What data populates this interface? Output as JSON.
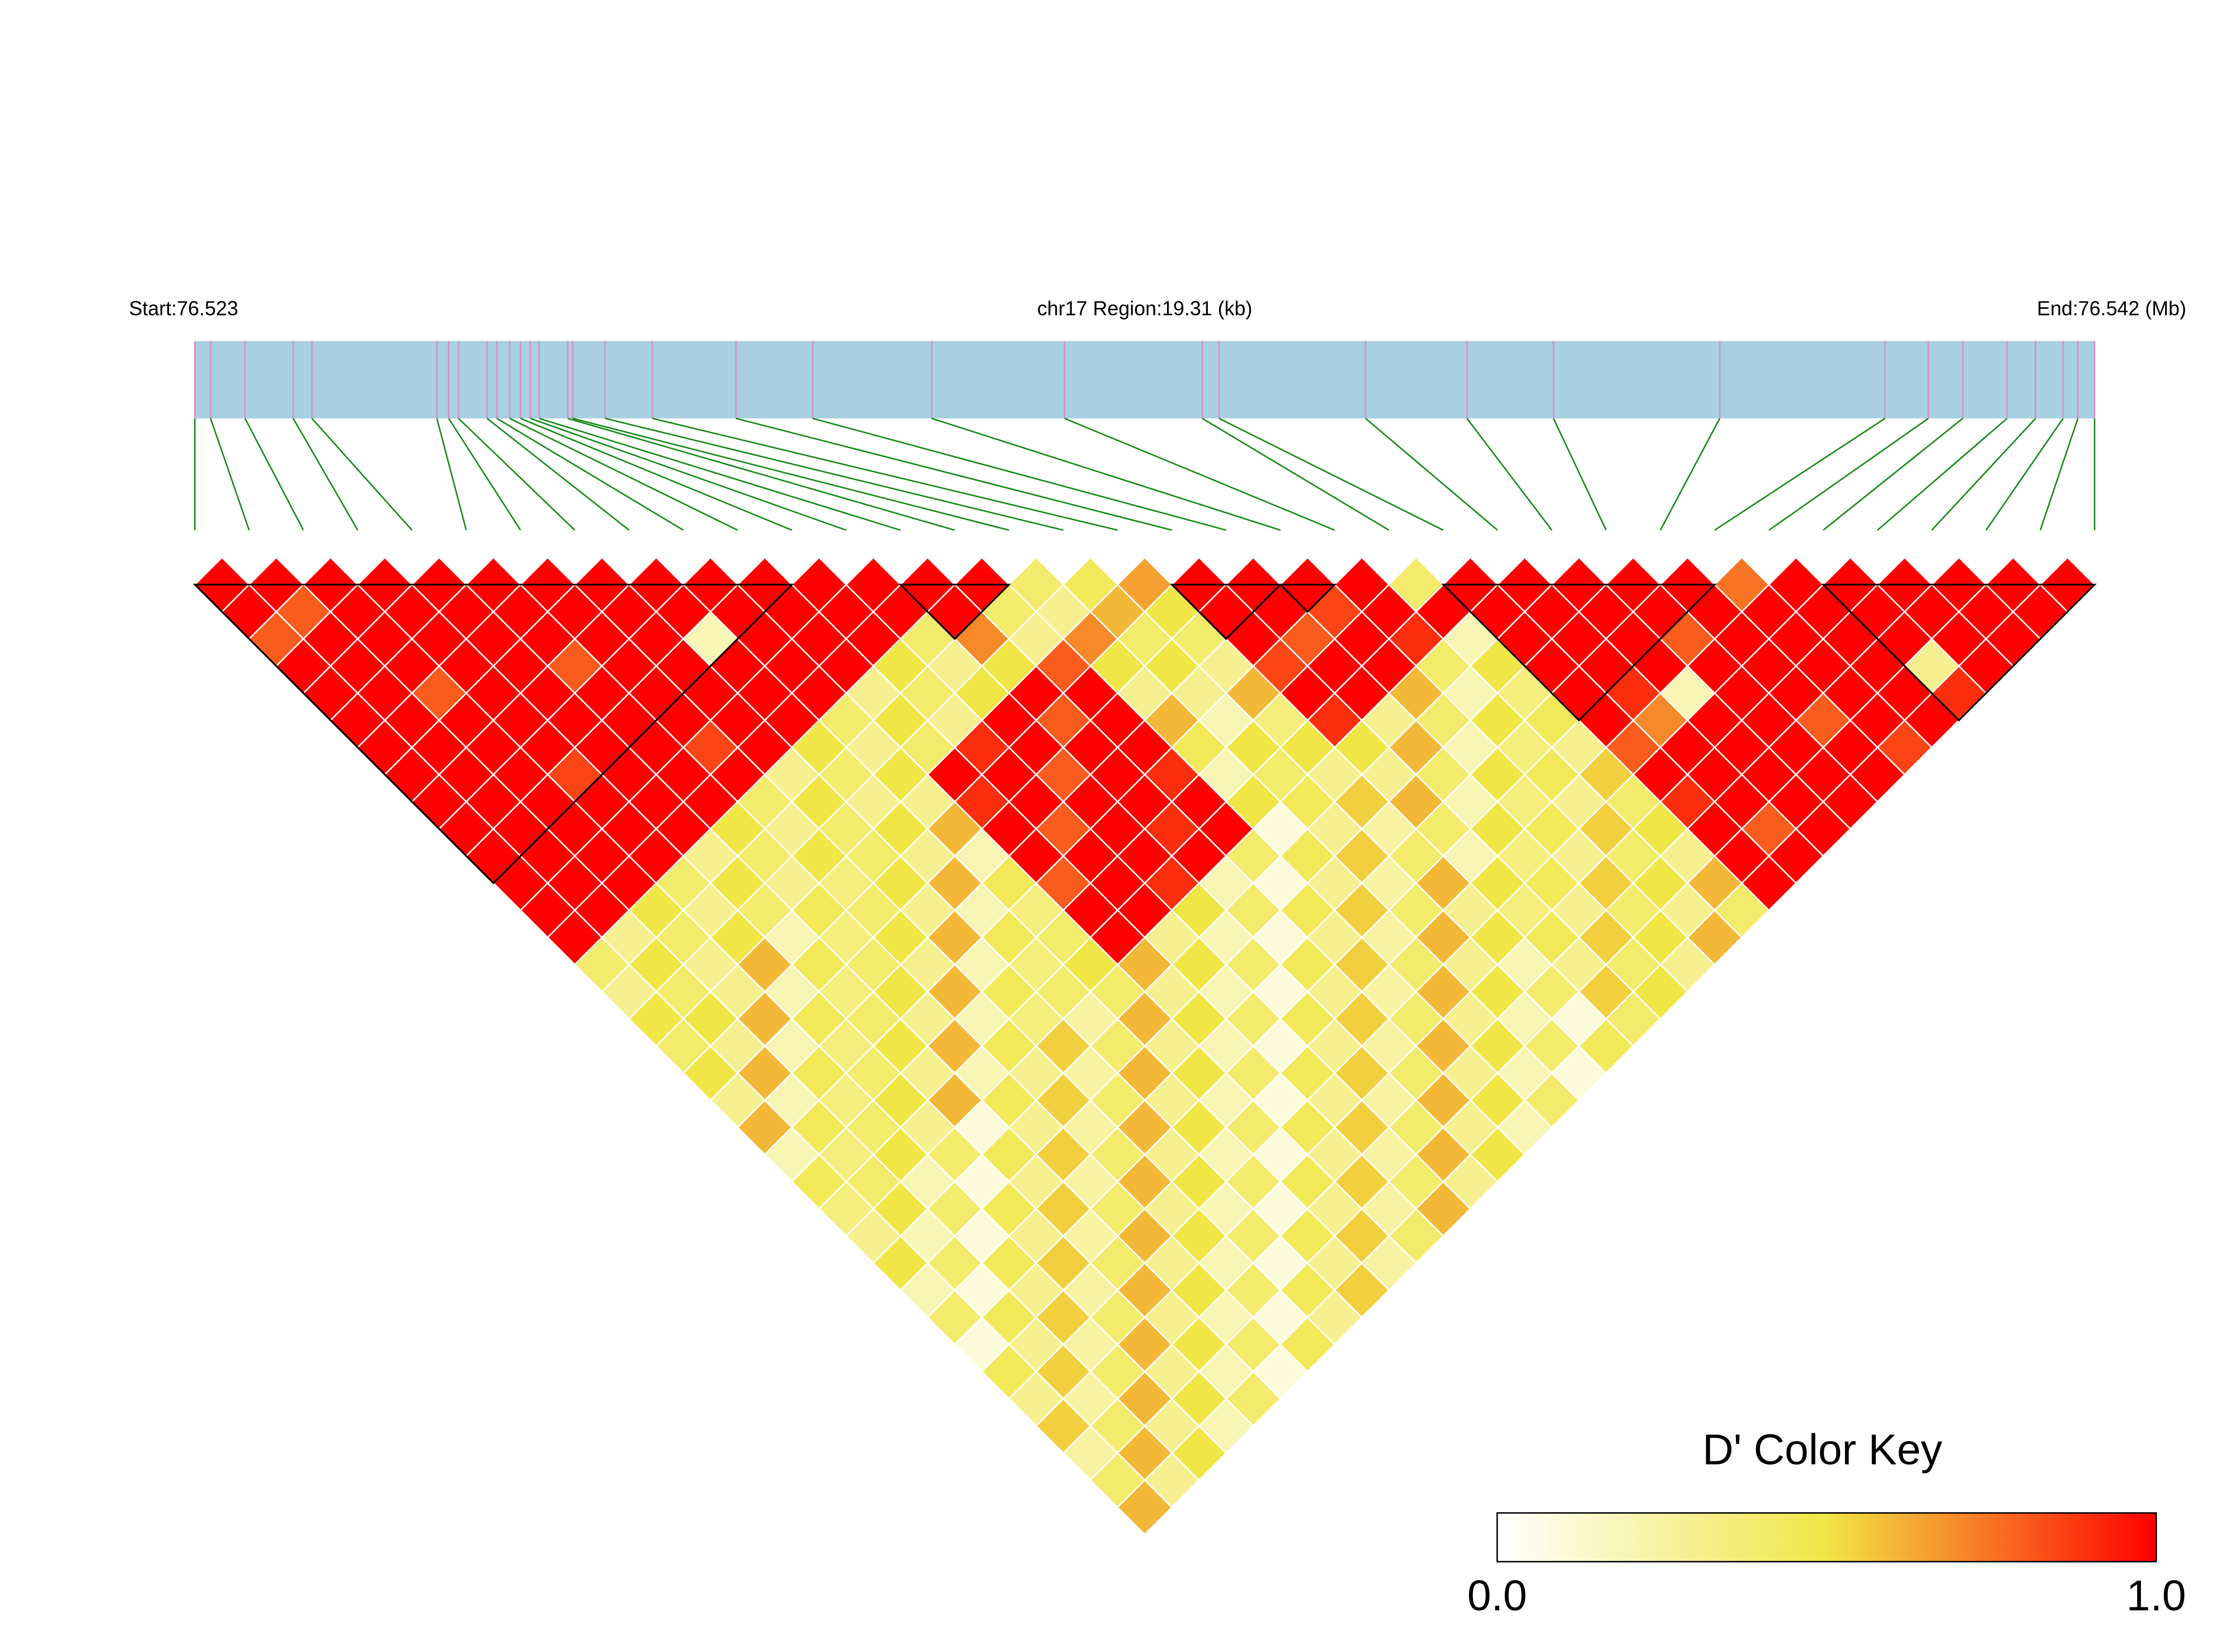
{
  "chart_data": {
    "type": "ld-heatmap",
    "start_label": "Start:76.523",
    "region_label": "chr17 Region:19.31 (kb)",
    "end_label": "End:76.542 (Mb)",
    "key_title": "D' Color Key",
    "key_ticks": [
      {
        "value": 0,
        "label": "0.0"
      },
      {
        "value": 1,
        "label": "1.0"
      }
    ],
    "xlim": [
      0,
      19.31
    ],
    "snp_positions": [
      0,
      0.16,
      0.51,
      1.0,
      1.19,
      2.46,
      2.58,
      2.68,
      2.97,
      3.07,
      3.2,
      3.31,
      3.41,
      3.5,
      3.79,
      3.84,
      4.17,
      4.65,
      5.5,
      6.28,
      7.49,
      8.84,
      10.24,
      10.41,
      11.9,
      12.93,
      13.81,
      15.5,
      17.18,
      17.62,
      17.97,
      18.42,
      18.71,
      18.99,
      19.14,
      19.31
    ],
    "blocks": [
      [
        0,
        11
      ],
      [
        13,
        15
      ],
      [
        18,
        20
      ],
      [
        20,
        21
      ],
      [
        23,
        28
      ],
      [
        30,
        35
      ]
    ],
    "ld": [
      [
        1,
        1,
        0.8,
        1,
        1,
        1,
        1,
        1,
        1,
        1,
        1,
        1,
        1,
        1,
        0.4,
        0.3,
        0.5,
        0.4,
        0.5,
        0.3,
        0.6,
        0.2,
        0.45,
        0.35,
        0.3,
        0.5,
        0.2,
        0.4,
        0.1,
        0.45,
        0.3,
        0.55,
        0.25,
        0.4,
        0.6
      ],
      [
        1,
        0.8,
        1,
        1,
        1,
        1,
        1,
        1,
        1,
        1,
        1,
        1,
        1,
        0.3,
        0.5,
        0.4,
        0.5,
        0.3,
        0.6,
        0.2,
        0.45,
        0.35,
        0.4,
        0.5,
        0.2,
        0.4,
        0.1,
        0.45,
        0.3,
        0.55,
        0.25,
        0.4,
        0.6,
        0.3
      ],
      [
        1,
        1,
        1,
        1,
        0.8,
        1,
        1,
        1,
        1,
        1,
        1,
        1,
        0.5,
        0.4,
        0.3,
        0.3,
        0.6,
        0.2,
        0.45,
        0.35,
        0.4,
        0.5,
        0.2,
        0.4,
        0.1,
        0.45,
        0.3,
        0.55,
        0.25,
        0.4,
        0.6,
        0.3,
        0.5
      ],
      [
        1,
        1,
        1,
        1,
        1,
        1,
        1,
        0.85,
        1,
        1,
        1,
        0.4,
        0.3,
        0.5,
        0.6,
        0.2,
        0.45,
        0.35,
        0.4,
        0.5,
        0.3,
        0.4,
        0.1,
        0.45,
        0.3,
        0.55,
        0.25,
        0.4,
        0.6,
        0.3,
        0.5,
        0.2
      ],
      [
        1,
        1,
        1,
        1,
        1,
        1,
        1,
        1,
        1,
        1,
        0.3,
        0.5,
        0.4,
        0.2,
        0.45,
        0.35,
        0.4,
        0.5,
        0.3,
        0.6,
        0.1,
        0.45,
        0.3,
        0.55,
        0.25,
        0.4,
        0.6,
        0.3,
        0.5,
        0.2,
        0.4
      ],
      [
        1,
        1,
        1,
        0.8,
        1,
        1,
        1,
        1,
        1,
        0.5,
        0.4,
        0.3,
        0.45,
        0.35,
        0.4,
        0.5,
        0.3,
        0.6,
        0.2,
        0.45,
        0.3,
        0.55,
        0.25,
        0.4,
        0.6,
        0.3,
        0.5,
        0.2,
        0.4,
        0.1
      ],
      [
        1,
        1,
        1,
        1,
        1,
        1,
        0.85,
        1,
        0.4,
        0.3,
        0.5,
        0.35,
        0.4,
        0.5,
        0.3,
        0.6,
        0.2,
        0.45,
        0.3,
        0.55,
        0.25,
        0.4,
        0.6,
        0.3,
        0.5,
        0.2,
        0.4,
        0.1,
        0.45
      ],
      [
        1,
        1,
        1,
        1,
        1,
        1,
        1,
        0.3,
        0.5,
        0.4,
        0.4,
        0.5,
        0.3,
        0.6,
        0.2,
        0.45,
        0.35,
        0.55,
        0.25,
        0.4,
        0.6,
        0.3,
        0.5,
        0.2,
        0.4,
        0.1,
        0.45,
        0.3
      ],
      [
        1,
        1,
        0.2,
        1,
        1,
        1,
        0.5,
        0.4,
        0.3,
        0.5,
        0.3,
        0.6,
        0.2,
        0.45,
        0.35,
        0.4,
        0.25,
        0.4,
        0.6,
        0.3,
        0.5,
        0.2,
        0.4,
        0.1,
        0.45,
        0.3,
        0.55
      ],
      [
        1,
        1,
        1,
        1,
        1,
        0.4,
        0.3,
        0.5,
        0.3,
        0.6,
        0.2,
        0.45,
        0.35,
        0.4,
        0.5,
        0.4,
        0.6,
        0.3,
        0.5,
        0.2,
        0.4,
        0.1,
        0.45,
        0.3,
        0.55,
        0.25
      ],
      [
        1,
        1,
        1,
        1,
        0.3,
        0.5,
        0.4,
        1,
        0.9,
        1,
        1,
        0.8,
        1,
        1,
        0.6,
        0.3,
        0.5,
        0.2,
        0.4,
        0.1,
        0.45,
        0.3,
        0.55,
        0.25,
        0.4
      ],
      [
        1,
        1,
        1,
        0.5,
        0.4,
        0.3,
        0.9,
        1,
        1,
        0.8,
        1,
        1,
        1,
        0.3,
        0.5,
        0.2,
        0.4,
        0.1,
        0.45,
        0.3,
        0.55,
        0.25,
        0.4,
        0.6
      ],
      [
        1,
        1,
        0.4,
        0.3,
        0.5,
        1,
        1,
        0.8,
        1,
        1,
        1,
        0.9,
        0.5,
        0.2,
        0.4,
        0.1,
        0.45,
        0.3,
        0.55,
        0.25,
        0.4,
        0.6,
        0.3
      ],
      [
        1,
        1,
        0.7,
        0.5,
        1,
        0.8,
        1,
        1,
        1,
        0.9,
        1,
        0.2,
        0.4,
        0.1,
        0.45,
        0.3,
        0.55,
        0.25,
        0.4,
        0.6,
        0.3,
        0.5
      ],
      [
        1,
        0.4,
        0.3,
        0.8,
        1,
        1,
        1,
        0.9,
        1,
        1,
        0.4,
        0.1,
        0.45,
        0.3,
        0.55,
        0.25,
        0.4,
        0.6,
        0.3,
        0.5,
        0.2
      ],
      [
        0.4,
        0.3,
        0.7,
        0.5,
        0.3,
        0.6,
        0.45,
        0.2,
        0.5,
        0.1,
        0.45,
        0.3,
        0.55,
        0.25,
        0.4,
        0.6,
        0.3,
        0.5,
        0.2,
        0.4
      ],
      [
        0.45,
        0.6,
        0.4,
        0.5,
        0.3,
        0.2,
        0.5,
        0.4,
        0.45,
        0.3,
        0.55,
        0.25,
        0.4,
        0.6,
        0.3,
        0.5,
        0.2,
        0.4,
        0.1
      ],
      [
        0.65,
        0.5,
        0.4,
        0.3,
        0.6,
        0.35,
        0.5,
        0.3,
        0.55,
        0.25,
        0.4,
        0.6,
        0.3,
        0.5,
        0.2,
        0.4,
        0.1,
        0.45
      ],
      [
        1,
        1,
        1,
        0.85,
        1,
        0.9,
        0.5,
        0.3,
        0.6,
        0.4,
        0.2,
        0.5,
        0.35,
        0.45,
        0.3,
        0.55,
        0.4
      ],
      [
        1,
        1,
        0.8,
        1,
        1,
        0.3,
        0.6,
        0.4,
        0.2,
        0.5,
        0.35,
        0.45,
        0.3,
        0.55,
        0.4,
        0.5
      ],
      [
        1,
        0.85,
        1,
        1,
        0.6,
        0.4,
        0.2,
        0.5,
        0.35,
        0.45,
        0.3,
        0.55,
        0.4,
        0.5,
        0.3
      ],
      [
        1,
        1,
        0.9,
        0.4,
        0.2,
        0.5,
        0.35,
        0.45,
        0.3,
        0.55,
        0.4,
        0.5,
        0.3,
        0.6
      ],
      [
        0.4,
        1,
        0.2,
        0.5,
        0.35,
        0.45,
        0.3,
        0.55,
        0.4,
        0.5,
        0.3,
        0.6,
        0.4
      ],
      [
        1,
        1,
        1,
        1,
        1,
        1,
        0.8,
        1,
        0.9,
        1,
        1,
        1
      ],
      [
        1,
        1,
        1,
        1,
        0.9,
        0.7,
        1,
        1,
        1,
        0.8,
        1
      ],
      [
        1,
        1,
        1,
        1,
        0.2,
        1,
        1,
        1,
        1,
        1
      ],
      [
        1,
        1,
        0.8,
        1,
        1,
        1,
        1,
        1,
        1
      ],
      [
        1,
        1,
        1,
        1,
        1,
        0.8,
        1,
        1
      ],
      [
        0.75,
        1,
        1,
        1,
        1,
        1,
        0.85
      ],
      [
        1,
        1,
        1,
        1,
        1,
        1
      ],
      [
        1,
        1,
        1,
        0.3,
        0.9
      ],
      [
        1,
        1,
        1,
        1
      ],
      [
        1,
        1,
        1
      ],
      [
        1,
        1
      ],
      [
        1
      ]
    ]
  }
}
